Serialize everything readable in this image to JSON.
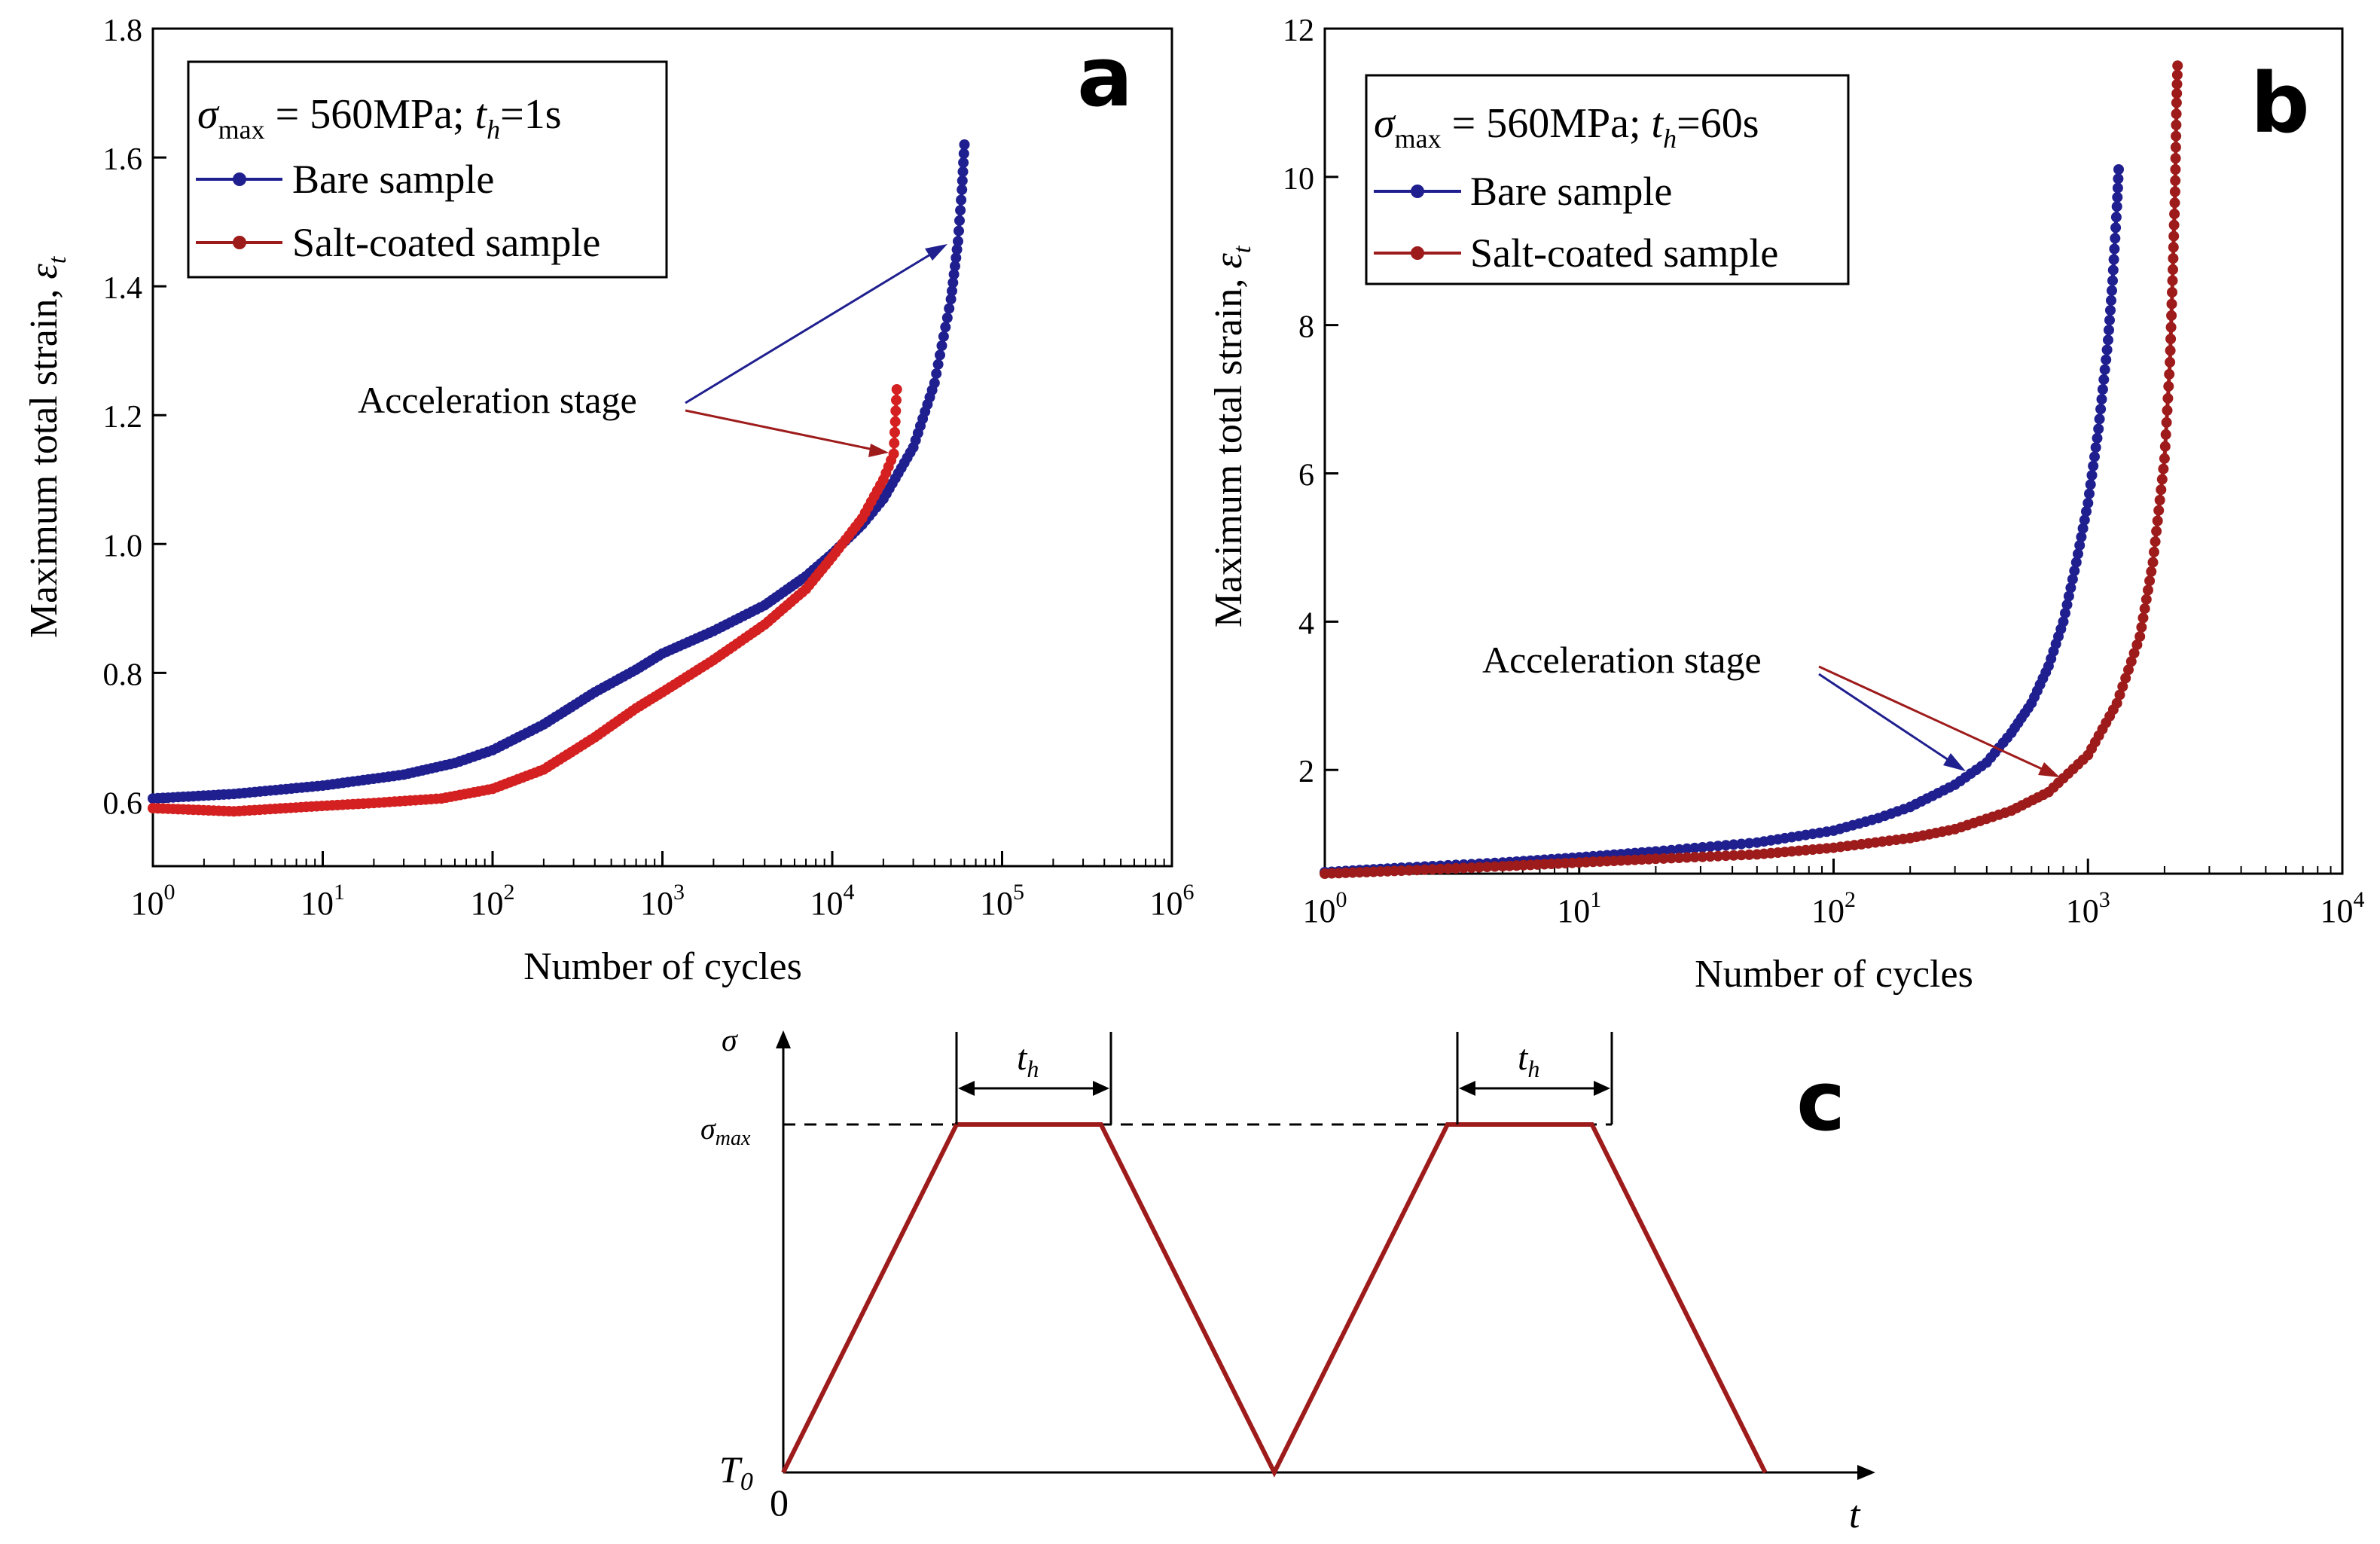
{
  "colors": {
    "bare": "#1f1f8f",
    "salt_a": "#d42020",
    "salt_b": "#9e1b1b",
    "waveform": "#9e1b1b"
  },
  "chart_data": [
    {
      "id": "a",
      "type": "scatter",
      "panel_label": "a",
      "xscale": "log",
      "xlim": [
        1,
        1000000
      ],
      "ylim": [
        0.5,
        1.8
      ],
      "x_tick_exponents": [
        "0",
        "1",
        "2",
        "3",
        "4",
        "5",
        "6"
      ],
      "x_tick_base": "10",
      "y_ticks": [
        "0.6",
        "0.8",
        "1.0",
        "1.2",
        "1.4",
        "1.6",
        "1.8"
      ],
      "y_tick_values": [
        0.6,
        0.8,
        1.0,
        1.2,
        1.4,
        1.6,
        1.8
      ],
      "xlabel": "Number of cycles",
      "ylabel": "Maximum total strain, ",
      "ylabel_symbol": "ε",
      "ylabel_sub": "t",
      "legend": {
        "title_symbol": "σ",
        "title_sub": "max",
        "title_text": " = 560MPa; ",
        "title_th": "t",
        "title_th_sub": "h",
        "title_th_value": "=1s",
        "entries": [
          "Bare sample",
          "Salt-coated sample"
        ]
      },
      "annotation": "Acceleration stage",
      "series": [
        {
          "name": "Bare sample",
          "points": [
            [
              1,
              0.605
            ],
            [
              3,
              0.612
            ],
            [
              10,
              0.625
            ],
            [
              30,
              0.642
            ],
            [
              60,
              0.66
            ],
            [
              100,
              0.68
            ],
            [
              200,
              0.72
            ],
            [
              400,
              0.77
            ],
            [
              700,
              0.805
            ],
            [
              1000,
              0.83
            ],
            [
              2000,
              0.865
            ],
            [
              4000,
              0.905
            ],
            [
              7000,
              0.95
            ],
            [
              10000,
              0.985
            ],
            [
              15000,
              1.03
            ],
            [
              20000,
              1.07
            ],
            [
              30000,
              1.15
            ],
            [
              40000,
              1.25
            ],
            [
              50000,
              1.38
            ],
            [
              55000,
              1.47
            ],
            [
              58000,
              1.55
            ],
            [
              60000,
              1.62
            ]
          ]
        },
        {
          "name": "Salt-coated sample",
          "points": [
            [
              1,
              0.59
            ],
            [
              3,
              0.585
            ],
            [
              8,
              0.592
            ],
            [
              20,
              0.598
            ],
            [
              50,
              0.605
            ],
            [
              100,
              0.62
            ],
            [
              200,
              0.65
            ],
            [
              400,
              0.7
            ],
            [
              700,
              0.745
            ],
            [
              1000,
              0.77
            ],
            [
              2000,
              0.82
            ],
            [
              4000,
              0.875
            ],
            [
              7000,
              0.93
            ],
            [
              10000,
              0.98
            ],
            [
              15000,
              1.04
            ],
            [
              20000,
              1.1
            ],
            [
              23000,
              1.14
            ],
            [
              24000,
              1.24
            ]
          ]
        }
      ]
    },
    {
      "id": "b",
      "type": "scatter",
      "panel_label": "b",
      "xscale": "log",
      "xlim": [
        1,
        10000
      ],
      "ylim": [
        0.6,
        12
      ],
      "x_tick_exponents": [
        "0",
        "1",
        "2",
        "3",
        "4"
      ],
      "x_tick_base": "10",
      "y_ticks": [
        "2",
        "4",
        "6",
        "8",
        "10",
        "12"
      ],
      "y_tick_values": [
        2,
        4,
        6,
        8,
        10,
        12
      ],
      "xlabel": "Number of cycles",
      "ylabel": "Maximum total strain, ",
      "ylabel_symbol": "ε",
      "ylabel_sub": "t",
      "legend": {
        "title_symbol": "σ",
        "title_sub": "max",
        "title_text": " = 560MPa; ",
        "title_th": "t",
        "title_th_sub": "h",
        "title_th_value": "=60s",
        "entries": [
          "Bare sample",
          "Salt-coated sample"
        ]
      },
      "annotation": "Acceleration stage",
      "series": [
        {
          "name": "Bare sample",
          "points": [
            [
              1,
              0.62
            ],
            [
              2,
              0.68
            ],
            [
              5,
              0.75
            ],
            [
              10,
              0.82
            ],
            [
              20,
              0.9
            ],
            [
              50,
              1.02
            ],
            [
              100,
              1.18
            ],
            [
              150,
              1.35
            ],
            [
              200,
              1.5
            ],
            [
              300,
              1.8
            ],
            [
              400,
              2.1
            ],
            [
              500,
              2.5
            ],
            [
              600,
              2.9
            ],
            [
              700,
              3.4
            ],
            [
              800,
              4.0
            ],
            [
              900,
              4.8
            ],
            [
              1000,
              5.6
            ],
            [
              1100,
              6.6
            ],
            [
              1200,
              7.8
            ],
            [
              1250,
              8.6
            ],
            [
              1300,
              9.6
            ],
            [
              1320,
              10.1
            ]
          ]
        },
        {
          "name": "Salt-coated sample",
          "points": [
            [
              1,
              0.6
            ],
            [
              2,
              0.64
            ],
            [
              5,
              0.7
            ],
            [
              10,
              0.75
            ],
            [
              20,
              0.8
            ],
            [
              50,
              0.86
            ],
            [
              100,
              0.95
            ],
            [
              200,
              1.08
            ],
            [
              300,
              1.2
            ],
            [
              500,
              1.45
            ],
            [
              700,
              1.7
            ],
            [
              1000,
              2.2
            ],
            [
              1300,
              2.9
            ],
            [
              1600,
              3.8
            ],
            [
              1800,
              4.8
            ],
            [
              2000,
              6.2
            ],
            [
              2100,
              7.5
            ],
            [
              2150,
              8.6
            ],
            [
              2200,
              9.8
            ],
            [
              2230,
              11.0
            ],
            [
              2250,
              11.5
            ]
          ]
        }
      ]
    },
    {
      "id": "c",
      "type": "line",
      "panel_label": "c",
      "x_axis_label": "t",
      "y_axis_label": "σ",
      "sigma_max_symbol": "σ",
      "sigma_max_sub": "max",
      "origin_label": "0",
      "t0_symbol": "T",
      "t0_sub": "0",
      "hold_label": "t",
      "hold_sub": "h",
      "xlim": [
        0,
        14.5
      ],
      "ylim": [
        0,
        1
      ],
      "series": [
        {
          "name": "stress waveform",
          "points": [
            [
              0,
              0
            ],
            [
              2.4,
              1
            ],
            [
              4.4,
              1
            ],
            [
              6.8,
              0
            ],
            [
              9.2,
              1
            ],
            [
              11.2,
              1
            ],
            [
              13.6,
              0
            ]
          ]
        }
      ],
      "hold_intervals": [
        [
          2.4,
          4.4
        ],
        [
          9.2,
          11.2
        ]
      ]
    }
  ]
}
